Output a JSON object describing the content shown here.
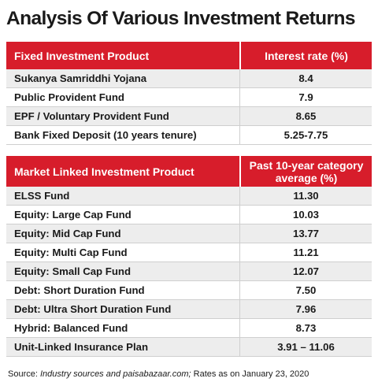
{
  "title": "Analysis Of Various Investment Returns",
  "chart_data": [
    {
      "type": "table",
      "columns": [
        "Fixed Investment Product",
        "Interest rate (%)"
      ],
      "rows": [
        [
          "Sukanya Samriddhi Yojana",
          "8.4"
        ],
        [
          "Public Provident Fund",
          "7.9"
        ],
        [
          "EPF / Voluntary Provident Fund",
          "8.65"
        ],
        [
          "Bank Fixed Deposit (10 years tenure)",
          "5.25-7.75"
        ]
      ]
    },
    {
      "type": "table",
      "columns": [
        "Market Linked Investment Product",
        "Past 10-year category average (%)"
      ],
      "rows": [
        [
          "ELSS Fund",
          "11.30"
        ],
        [
          "Equity: Large Cap Fund",
          "10.03"
        ],
        [
          "Equity: Mid Cap Fund",
          "13.77"
        ],
        [
          "Equity: Multi Cap Fund",
          "11.21"
        ],
        [
          "Equity: Small Cap Fund",
          "12.07"
        ],
        [
          "Debt: Short Duration Fund",
          "7.50"
        ],
        [
          "Debt: Ultra Short Duration Fund",
          "7.96"
        ],
        [
          "Hybrid: Balanced Fund",
          "8.73"
        ],
        [
          "Unit-Linked Insurance Plan",
          "3.91 – 11.06"
        ]
      ]
    }
  ],
  "source": {
    "label": "Source:",
    "text": "Industry sources and paisabazaar.com;",
    "note": "Rates as on January 23, 2020"
  },
  "colors": {
    "header_red": "#d71d2b",
    "row_alt": "#ededed",
    "text": "#1a1a1a"
  }
}
